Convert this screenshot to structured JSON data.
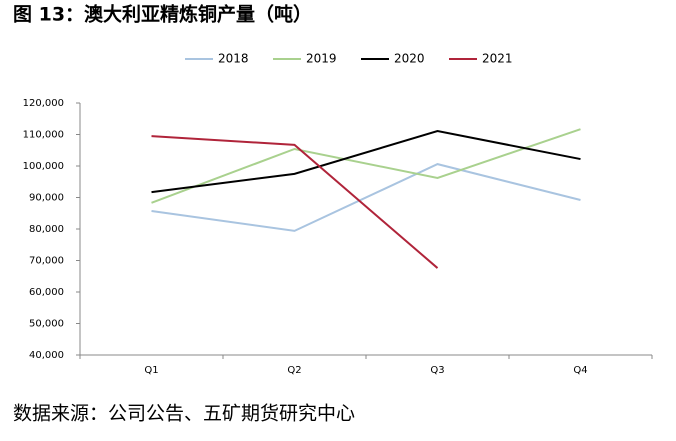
{
  "chart_data": {
    "type": "line",
    "title": "图 13：澳大利亚精炼铜产量（吨）",
    "source": "数据来源：公司公告、五矿期货研究中心",
    "categories": [
      "Q1",
      "Q2",
      "Q3",
      "Q4"
    ],
    "series": [
      {
        "name": "2018",
        "color": "#a9c4e0",
        "values": [
          85700,
          79400,
          100600,
          89200
        ]
      },
      {
        "name": "2019",
        "color": "#a9d18e",
        "values": [
          88300,
          105400,
          96200,
          111700
        ]
      },
      {
        "name": "2020",
        "color": "#000000",
        "values": [
          91700,
          97500,
          111100,
          102200
        ]
      },
      {
        "name": "2021",
        "color": "#b0243a",
        "values": [
          109500,
          106700,
          67600,
          null
        ]
      }
    ],
    "ylim": [
      40000,
      120000
    ],
    "yticks": [
      {
        "value": 40000,
        "label": "40,000"
      },
      {
        "value": 50000,
        "label": "50,000"
      },
      {
        "value": 60000,
        "label": "60,000"
      },
      {
        "value": 70000,
        "label": "70,000"
      },
      {
        "value": 80000,
        "label": "80,000"
      },
      {
        "value": 90000,
        "label": "90,000"
      },
      {
        "value": 100000,
        "label": "100,000"
      },
      {
        "value": 110000,
        "label": "110,000"
      },
      {
        "value": 120000,
        "label": "120,000"
      }
    ],
    "legend": "top",
    "grid": false
  }
}
